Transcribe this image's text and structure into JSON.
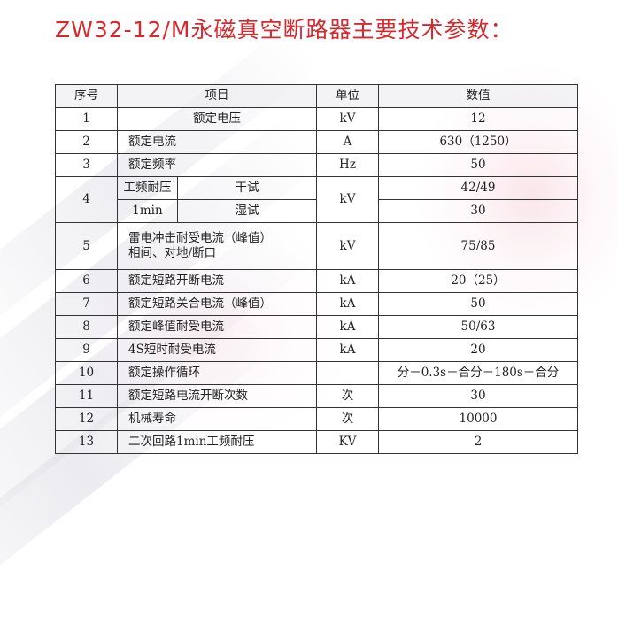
{
  "title": "ZW32-12/M永磁真空断路器主要技术参数：",
  "headers": {
    "no": "序号",
    "item": "项目",
    "unit": "单位",
    "value": "数值"
  },
  "rows": [
    {
      "no": "1",
      "item": "额定电压",
      "unit": "kV",
      "value": "12"
    },
    {
      "no": "2",
      "item": "额定电流",
      "unit": "A",
      "value": "630（1250）"
    },
    {
      "no": "3",
      "item": "额定频率",
      "unit": "Hz",
      "value": "50"
    },
    {
      "no": "4",
      "item_line1": "工频耐压",
      "item_line2": "1min",
      "sub_dry": "干试",
      "sub_wet": "湿试",
      "unit": "kV",
      "value_dry": "42/49",
      "value_wet": "30"
    },
    {
      "no": "5",
      "item_line1": "雷电冲击耐受电流（峰值）",
      "item_line2": "相间、对地/断口",
      "unit": "kV",
      "value": "75/85"
    },
    {
      "no": "6",
      "item": "额定短路开断电流",
      "unit": "kA",
      "value": "20（25）"
    },
    {
      "no": "7",
      "item": "额定短路关合电流（峰值）",
      "unit": "kA",
      "value": "50"
    },
    {
      "no": "8",
      "item": "额定峰值耐受电流",
      "unit": "kA",
      "value": "50/63"
    },
    {
      "no": "9",
      "item": "4S短时耐受电流",
      "unit": "kA",
      "value": "20"
    },
    {
      "no": "10",
      "item": "额定操作循环",
      "unit": "",
      "value": "分－0.3s－合分－180s－合分"
    },
    {
      "no": "11",
      "item": "额定短路电流开断次数",
      "unit": "次",
      "value": "30"
    },
    {
      "no": "12",
      "item": "机械寿命",
      "unit": "次",
      "value": "10000"
    },
    {
      "no": "13",
      "item": "二次回路1min工频耐压",
      "unit": "KV",
      "value": "2"
    }
  ]
}
